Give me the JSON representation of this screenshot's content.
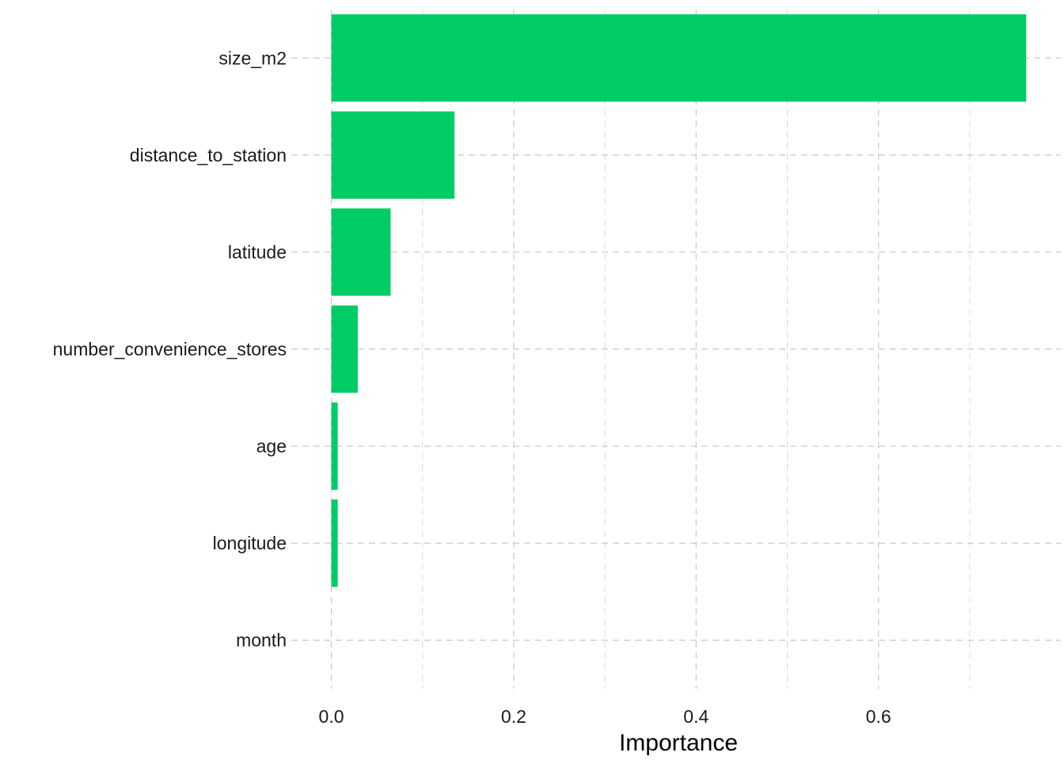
{
  "chart_data": {
    "type": "bar",
    "orientation": "horizontal",
    "categories": [
      "size_m2",
      "distance_to_station",
      "latitude",
      "number_convenience_stores",
      "age",
      "longitude",
      "month"
    ],
    "values": [
      0.762,
      0.135,
      0.065,
      0.029,
      0.007,
      0.007,
      0.0
    ],
    "xlabel": "Importance",
    "ylabel": "",
    "xlim": [
      -0.03,
      0.8
    ],
    "xticks": [
      0.0,
      0.2,
      0.4,
      0.6
    ],
    "xtick_labels": [
      "0.0",
      "0.2",
      "0.4",
      "0.6"
    ],
    "minor_xticks": [
      0.1,
      0.3,
      0.5,
      0.7
    ],
    "grid": true,
    "legend": "none",
    "bar_color": "#00CC66"
  }
}
